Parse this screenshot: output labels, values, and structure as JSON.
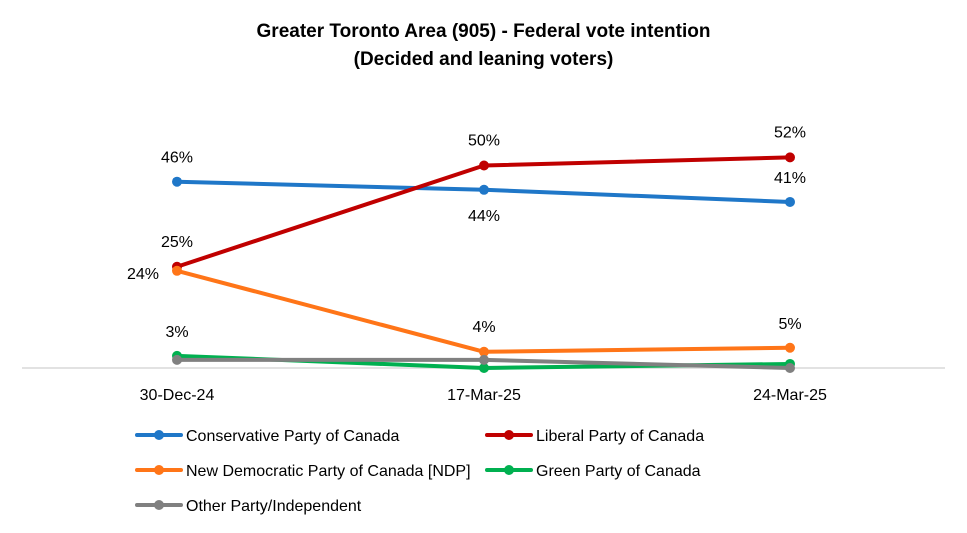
{
  "chart_data": {
    "type": "line",
    "title": "Greater Toronto Area (905) - Federal vote intention",
    "subtitle": "(Decided and leaning voters)",
    "categories": [
      "30-Dec-24",
      "17-Mar-25",
      "24-Mar-25"
    ],
    "xlabel": "",
    "ylabel": "",
    "ylim": [
      0,
      55
    ],
    "grid": false,
    "legend_placement": "bottom",
    "series": [
      {
        "name": "Conservative Party of Canada",
        "color": "#1F77C8",
        "values": [
          46,
          44,
          41
        ],
        "labels": [
          "46%",
          "44%",
          "41%"
        ]
      },
      {
        "name": "Liberal Party of Canada",
        "color": "#C00000",
        "values": [
          25,
          50,
          52
        ],
        "labels": [
          "25%",
          "50%",
          "52%"
        ]
      },
      {
        "name": "New Democratic Party of Canada [NDP]",
        "color": "#FF7518",
        "values": [
          24,
          4,
          5
        ],
        "labels": [
          "24%",
          "4%",
          "5%"
        ]
      },
      {
        "name": "Green Party of Canada",
        "color": "#00B050",
        "values": [
          3,
          0,
          1
        ],
        "labels": [
          "3%",
          "",
          ""
        ]
      },
      {
        "name": "Other Party/Independent",
        "color": "#808080",
        "values": [
          2,
          2,
          0
        ],
        "labels": [
          "",
          "",
          ""
        ]
      }
    ]
  }
}
